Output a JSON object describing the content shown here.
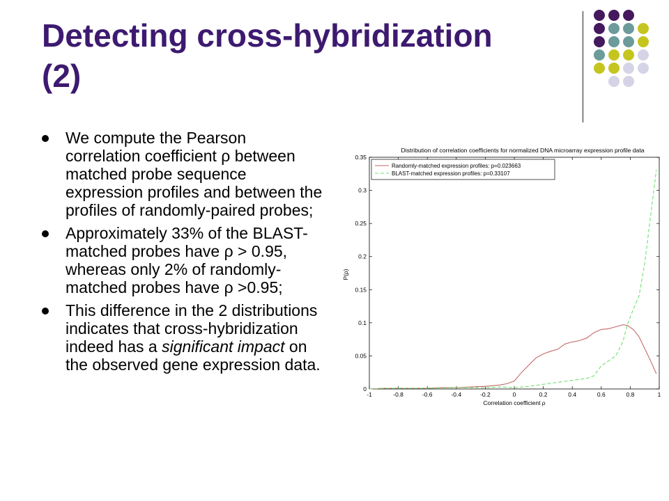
{
  "slide": {
    "title_line1": "Detecting cross-hybridization",
    "title_line2": "(2)",
    "bullets": [
      {
        "text": "We compute the Pearson correlation coefficient ρ between matched probe sequence expression profiles and between the profiles of randomly-paired probes;"
      },
      {
        "text": "Approximately 33% of the BLAST-matched probes have ρ > 0.95, whereas only 2% of randomly-matched probes have ρ >0.95;"
      },
      {
        "pre": "This difference in the 2 distributions indicates that cross-hybridization indeed has a ",
        "em": "significant impact",
        "post": " on the observed gene expression data."
      }
    ]
  },
  "colors": {
    "title": "#3d1a70",
    "dark_purple": "#44195e",
    "teal": "#6b9b9b",
    "olive": "#c5c51f",
    "lavender": "#d5d3e6",
    "random_series": "#c46a6a",
    "blast_series": "#6ee06e"
  },
  "chart_data": {
    "type": "line",
    "title": "Distribution of correlation coefficients for normalized DNA microarray expression profile data",
    "xlabel": "Correlation coefficient ρ",
    "ylabel": "P(ρ)",
    "xlim": [
      -1,
      1
    ],
    "ylim": [
      0,
      0.35
    ],
    "xticks": [
      "-1",
      "-0.8",
      "-0.6",
      "-0.4",
      "-0.2",
      "0",
      "0.2",
      "0.4",
      "0.6",
      "0.8",
      "1"
    ],
    "yticks": [
      "0",
      "0.05",
      "0.1",
      "0.15",
      "0.2",
      "0.25",
      "0.3",
      "0.35"
    ],
    "grid": false,
    "legend_position": "top-left",
    "series": [
      {
        "name": "Randomly-matched expression profiles: p=0.023663",
        "color": "#c46a6a",
        "dash": "solid",
        "x": [
          -1,
          -0.9,
          -0.8,
          -0.7,
          -0.6,
          -0.5,
          -0.4,
          -0.3,
          -0.2,
          -0.1,
          -0.05,
          0,
          0.05,
          0.1,
          0.15,
          0.2,
          0.25,
          0.3,
          0.35,
          0.4,
          0.45,
          0.5,
          0.55,
          0.6,
          0.65,
          0.7,
          0.75,
          0.78,
          0.82,
          0.86,
          0.9,
          0.95,
          0.98
        ],
        "y": [
          0,
          0.001,
          0.001,
          0.001,
          0.001,
          0.002,
          0.002,
          0.003,
          0.004,
          0.006,
          0.008,
          0.012,
          0.025,
          0.036,
          0.047,
          0.053,
          0.057,
          0.06,
          0.068,
          0.071,
          0.073,
          0.077,
          0.085,
          0.09,
          0.091,
          0.094,
          0.097,
          0.096,
          0.09,
          0.079,
          0.061,
          0.038,
          0.023
        ]
      },
      {
        "name": "BLAST-matched expression profiles: p=0.33107",
        "color": "#6ee06e",
        "dash": "dashed",
        "x": [
          -1,
          -0.9,
          -0.8,
          -0.6,
          -0.4,
          -0.2,
          -0.1,
          0,
          0.1,
          0.2,
          0.3,
          0.4,
          0.5,
          0.55,
          0.6,
          0.7,
          0.75,
          0.78,
          0.82,
          0.86,
          0.9,
          0.94,
          0.98
        ],
        "y": [
          0,
          0.001,
          0.001,
          0.001,
          0.002,
          0.002,
          0.003,
          0.002,
          0.004,
          0.007,
          0.01,
          0.013,
          0.016,
          0.02,
          0.035,
          0.05,
          0.072,
          0.097,
          0.12,
          0.14,
          0.19,
          0.26,
          0.331
        ]
      }
    ]
  }
}
